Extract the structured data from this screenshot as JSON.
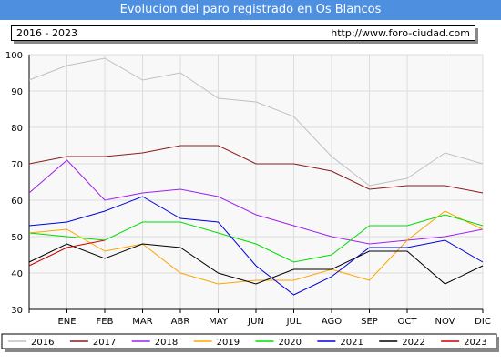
{
  "header": {
    "title": "Evolucion del paro registrado en Os Blancos",
    "range_label": "2016 - 2023",
    "url": "http://www.foro-ciudad.com"
  },
  "chart_data": {
    "type": "line",
    "title": "Evolucion del paro registrado en Os Blancos",
    "categories": [
      "",
      "ENE",
      "FEB",
      "MAR",
      "ABR",
      "MAY",
      "JUN",
      "JUL",
      "AGO",
      "SEP",
      "OCT",
      "NOV",
      "DIC"
    ],
    "ylim": [
      30,
      100
    ],
    "yticks": [
      30,
      40,
      50,
      60,
      70,
      80,
      90,
      100
    ],
    "grid": true,
    "legend_position": "bottom",
    "series": [
      {
        "name": "2016",
        "color": "#c0c0c0",
        "values": [
          93,
          97,
          99,
          93,
          95,
          88,
          87,
          83,
          72,
          64,
          66,
          73,
          70
        ]
      },
      {
        "name": "2017",
        "color": "#8b1a1a",
        "values": [
          70,
          72,
          72,
          73,
          75,
          75,
          70,
          70,
          68,
          63,
          64,
          64,
          62
        ]
      },
      {
        "name": "2018",
        "color": "#a020f0",
        "values": [
          62,
          71,
          60,
          62,
          63,
          61,
          56,
          53,
          50,
          48,
          49,
          50,
          52
        ]
      },
      {
        "name": "2019",
        "color": "#ffa500",
        "values": [
          51,
          52,
          46,
          48,
          40,
          37,
          38,
          38,
          41,
          38,
          49,
          57,
          52
        ]
      },
      {
        "name": "2020",
        "color": "#00dd00",
        "values": [
          51,
          50,
          49,
          54,
          54,
          51,
          48,
          43,
          45,
          53,
          53,
          56,
          53
        ]
      },
      {
        "name": "2021",
        "color": "#0000dd",
        "values": [
          53,
          54,
          57,
          61,
          55,
          54,
          42,
          34,
          39,
          47,
          47,
          49,
          43
        ]
      },
      {
        "name": "2022",
        "color": "#000000",
        "values": [
          43,
          48,
          44,
          48,
          47,
          40,
          37,
          41,
          41,
          46,
          46,
          37,
          42
        ]
      },
      {
        "name": "2023",
        "color": "#cc0000",
        "values": [
          42,
          47,
          49,
          null,
          null,
          null,
          null,
          null,
          null,
          null,
          null,
          null,
          null
        ]
      }
    ]
  }
}
